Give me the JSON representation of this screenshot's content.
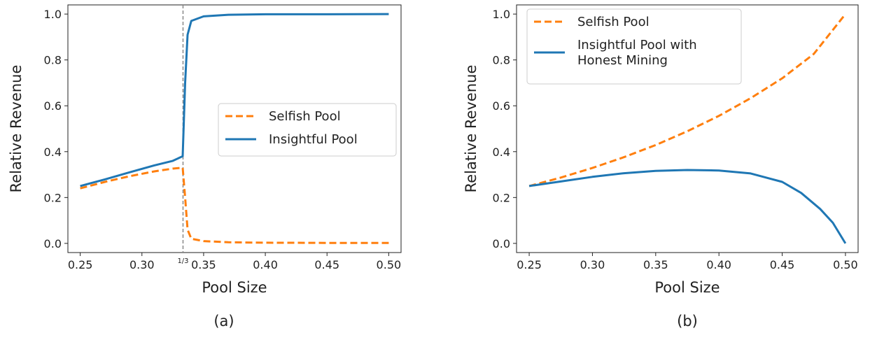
{
  "chart_data": [
    {
      "type": "line",
      "panel_label": "(a)",
      "xlabel": "Pool Size",
      "ylabel": "Relative Revenue",
      "xlim": [
        0.24,
        0.51
      ],
      "ylim": [
        -0.04,
        1.04
      ],
      "xticks": [
        0.25,
        0.3,
        0.35,
        0.4,
        0.45,
        0.5
      ],
      "xtick_labels": [
        "0.25",
        "0.30",
        "0.35",
        "0.40",
        "0.45",
        "0.50"
      ],
      "yticks": [
        0.0,
        0.2,
        0.4,
        0.6,
        0.8,
        1.0
      ],
      "ytick_labels": [
        "0.0",
        "0.2",
        "0.4",
        "0.6",
        "0.8",
        "1.0"
      ],
      "annotation": {
        "x": 0.3333,
        "label": "1/3",
        "style": "dashed-vertical"
      },
      "legend_position": "center-right",
      "series": [
        {
          "name": "Selfish Pool",
          "color": "#ff7f0e",
          "style": "dashed",
          "x": [
            0.25,
            0.27,
            0.29,
            0.31,
            0.325,
            0.333,
            0.335,
            0.337,
            0.34,
            0.35,
            0.37,
            0.4,
            0.45,
            0.5
          ],
          "y": [
            0.24,
            0.268,
            0.293,
            0.314,
            0.326,
            0.33,
            0.2,
            0.06,
            0.02,
            0.01,
            0.005,
            0.003,
            0.002,
            0.002
          ]
        },
        {
          "name": "Insightful Pool",
          "color": "#1f77b4",
          "style": "solid",
          "x": [
            0.25,
            0.27,
            0.29,
            0.31,
            0.325,
            0.333,
            0.335,
            0.337,
            0.34,
            0.35,
            0.37,
            0.4,
            0.45,
            0.5
          ],
          "y": [
            0.25,
            0.279,
            0.31,
            0.34,
            0.36,
            0.38,
            0.7,
            0.91,
            0.97,
            0.99,
            0.997,
            0.999,
            0.999,
            1.0
          ]
        }
      ]
    },
    {
      "type": "line",
      "panel_label": "(b)",
      "xlabel": "Pool Size",
      "ylabel": "Relative Revenue",
      "xlim": [
        0.24,
        0.51
      ],
      "ylim": [
        -0.04,
        1.04
      ],
      "xticks": [
        0.25,
        0.3,
        0.35,
        0.4,
        0.45,
        0.5
      ],
      "xtick_labels": [
        "0.25",
        "0.30",
        "0.35",
        "0.40",
        "0.45",
        "0.50"
      ],
      "yticks": [
        0.0,
        0.2,
        0.4,
        0.6,
        0.8,
        1.0
      ],
      "ytick_labels": [
        "0.0",
        "0.2",
        "0.4",
        "0.6",
        "0.8",
        "1.0"
      ],
      "legend_position": "top-left",
      "series": [
        {
          "name": "Selfish Pool",
          "color": "#ff7f0e",
          "style": "dashed",
          "x": [
            0.25,
            0.275,
            0.3,
            0.325,
            0.35,
            0.375,
            0.4,
            0.425,
            0.45,
            0.475,
            0.5
          ],
          "y": [
            0.25,
            0.287,
            0.329,
            0.376,
            0.429,
            0.489,
            0.556,
            0.633,
            0.72,
            0.826,
            1.0
          ]
        },
        {
          "name": "Insightful Pool with Honest Mining",
          "name_lines": [
            "Insightful Pool with",
            "Honest Mining"
          ],
          "color": "#1f77b4",
          "style": "solid",
          "x": [
            0.25,
            0.275,
            0.3,
            0.325,
            0.35,
            0.375,
            0.4,
            0.425,
            0.45,
            0.465,
            0.48,
            0.49,
            0.5
          ],
          "y": [
            0.25,
            0.27,
            0.29,
            0.306,
            0.316,
            0.32,
            0.318,
            0.305,
            0.268,
            0.22,
            0.15,
            0.09,
            0.0
          ]
        }
      ]
    }
  ]
}
